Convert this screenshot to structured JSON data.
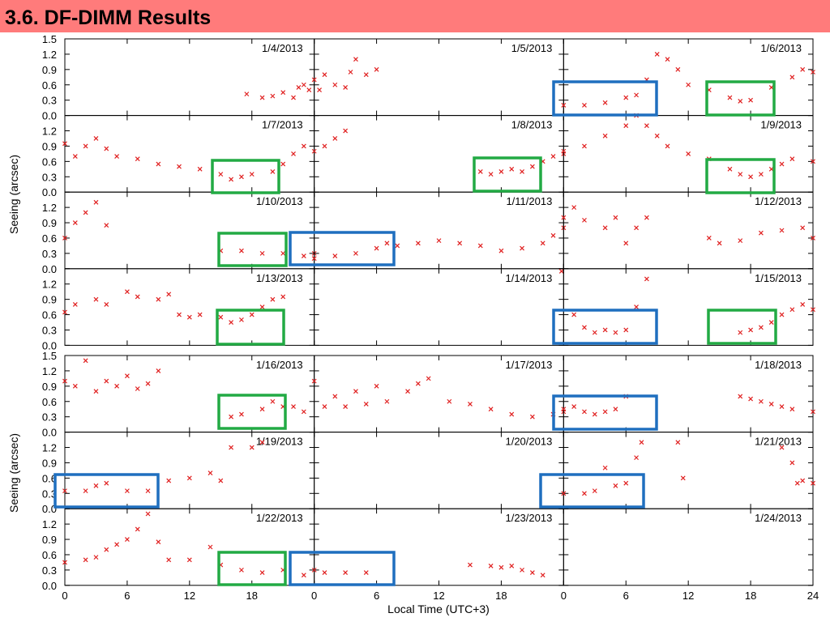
{
  "header": {
    "title": "3.6. DF-DIMM Results"
  },
  "chart_data": {
    "type": "scatter",
    "xlabel": "Local Time (UTC+3)",
    "ylabel": "Seeing (arcsec)",
    "xlim": [
      0,
      24
    ],
    "xticks": [
      0,
      6,
      12,
      18,
      24
    ],
    "ylim": [
      0,
      1.5
    ],
    "yticks": [
      {
        "value": 0,
        "label": "0.0"
      },
      0.3,
      0.6,
      0.9,
      1.2,
      1.5
    ],
    "series": [
      {
        "name": "1/4/2013",
        "color": "#e02020",
        "x": [
          17.5,
          19,
          20,
          21,
          22,
          22.5,
          23,
          23.5
        ],
        "values": [
          0.42,
          0.35,
          0.38,
          0.45,
          0.35,
          0.55,
          0.6,
          0.5
        ]
      },
      {
        "name": "1/5/2013",
        "color": "#e02020",
        "x": [
          0,
          0.5,
          1,
          2,
          3,
          3.5,
          4,
          5,
          6
        ],
        "values": [
          0.7,
          0.5,
          0.8,
          0.6,
          0.55,
          0.85,
          1.1,
          0.8,
          0.9
        ]
      },
      {
        "name": "1/6/2013",
        "color": "#e02020",
        "x": [
          0,
          2,
          4,
          6,
          7,
          8,
          9,
          10,
          11,
          12,
          14,
          16,
          17,
          18,
          20,
          22,
          23,
          24
        ],
        "values": [
          0.2,
          0.2,
          0.25,
          0.35,
          0.4,
          0.7,
          1.2,
          1.1,
          0.9,
          0.6,
          0.5,
          0.35,
          0.28,
          0.3,
          0.55,
          0.75,
          0.9,
          0.85
        ]
      },
      {
        "name": "1/7/2013",
        "color": "#e02020",
        "x": [
          0,
          1,
          2,
          3,
          4,
          5,
          7,
          9,
          11,
          13,
          15,
          16,
          17,
          18,
          20,
          21,
          22,
          23
        ],
        "values": [
          0.95,
          0.7,
          0.9,
          1.05,
          0.85,
          0.7,
          0.65,
          0.55,
          0.5,
          0.45,
          0.35,
          0.25,
          0.3,
          0.35,
          0.4,
          0.55,
          0.75,
          0.9
        ]
      },
      {
        "name": "1/8/2013",
        "color": "#e02020",
        "x": [
          0,
          1,
          2,
          3,
          16,
          17,
          18,
          19,
          20,
          21,
          22,
          23,
          24
        ],
        "values": [
          0.8,
          0.9,
          1.05,
          1.2,
          0.4,
          0.35,
          0.4,
          0.45,
          0.4,
          0.5,
          0.6,
          0.7,
          0.75
        ]
      },
      {
        "name": "1/9/2013",
        "color": "#e02020",
        "x": [
          0,
          2,
          4,
          6,
          7,
          8,
          9,
          10,
          12,
          14,
          16,
          17,
          18,
          19,
          20,
          21,
          22,
          24
        ],
        "values": [
          0.8,
          0.9,
          1.1,
          1.3,
          1.5,
          1.3,
          1.1,
          0.9,
          0.75,
          0.65,
          0.45,
          0.35,
          0.3,
          0.35,
          0.45,
          0.55,
          0.65,
          0.6
        ]
      },
      {
        "name": "1/10/2013",
        "color": "#e02020",
        "x": [
          0,
          1,
          2,
          3,
          4,
          15,
          17,
          19,
          21,
          23,
          24
        ],
        "values": [
          0.6,
          0.9,
          1.1,
          1.3,
          0.85,
          0.35,
          0.35,
          0.3,
          0.3,
          0.25,
          0.3
        ]
      },
      {
        "name": "1/11/2013",
        "color": "#e02020",
        "x": [
          0,
          2,
          4,
          6,
          7,
          8,
          10,
          12,
          14,
          16,
          18,
          20,
          22,
          23,
          24
        ],
        "values": [
          0.2,
          0.25,
          0.3,
          0.4,
          0.5,
          0.45,
          0.5,
          0.55,
          0.5,
          0.45,
          0.35,
          0.4,
          0.5,
          0.65,
          0.8
        ]
      },
      {
        "name": "1/12/2013",
        "color": "#e02020",
        "x": [
          0,
          1,
          2,
          4,
          5,
          6,
          7,
          8,
          14,
          15,
          17,
          19,
          21,
          23,
          24
        ],
        "values": [
          1.0,
          1.2,
          0.95,
          0.8,
          1.0,
          0.5,
          0.8,
          1.0,
          0.6,
          0.5,
          0.55,
          0.7,
          0.75,
          0.8,
          0.6
        ]
      },
      {
        "name": "1/13/2013",
        "color": "#e02020",
        "x": [
          0,
          1,
          3,
          4,
          6,
          7,
          9,
          10,
          11,
          12,
          13,
          15,
          16,
          17,
          18,
          19,
          20,
          21
        ],
        "values": [
          0.65,
          0.8,
          0.9,
          0.8,
          1.05,
          0.95,
          0.9,
          1.0,
          0.6,
          0.55,
          0.6,
          0.55,
          0.45,
          0.5,
          0.6,
          0.75,
          0.9,
          0.95
        ]
      },
      {
        "name": "1/14/2013",
        "color": "#e02020",
        "x": [
          23.8
        ],
        "values": [
          1.45
        ]
      },
      {
        "name": "1/15/2013",
        "color": "#e02020",
        "x": [
          1,
          2,
          3,
          4,
          5,
          6,
          7,
          8,
          17,
          18,
          19,
          20,
          21,
          22,
          23,
          24
        ],
        "values": [
          0.6,
          0.35,
          0.25,
          0.3,
          0.25,
          0.3,
          0.75,
          1.3,
          0.25,
          0.3,
          0.35,
          0.45,
          0.6,
          0.7,
          0.8,
          0.7
        ]
      },
      {
        "name": "1/16/2013",
        "color": "#e02020",
        "x": [
          0,
          1,
          2,
          3,
          4,
          5,
          6,
          7,
          8,
          9,
          16,
          17,
          19,
          20,
          21,
          22,
          23
        ],
        "values": [
          1.0,
          0.9,
          1.4,
          0.8,
          1.0,
          0.9,
          1.1,
          0.85,
          0.95,
          1.2,
          0.3,
          0.35,
          0.45,
          0.6,
          0.5,
          0.5,
          0.4
        ]
      },
      {
        "name": "1/17/2013",
        "color": "#e02020",
        "x": [
          0,
          1,
          2,
          3,
          4,
          5,
          6,
          7,
          9,
          10,
          11,
          13,
          15,
          17,
          19,
          21,
          23,
          24
        ],
        "values": [
          1.0,
          0.5,
          0.7,
          0.5,
          0.8,
          0.55,
          0.9,
          0.6,
          0.8,
          0.95,
          1.05,
          0.6,
          0.55,
          0.45,
          0.35,
          0.3,
          0.35,
          0.4
        ]
      },
      {
        "name": "1/18/2013",
        "color": "#e02020",
        "x": [
          0,
          1,
          2,
          3,
          4,
          5,
          6,
          17,
          18,
          19,
          20,
          21,
          22,
          24
        ],
        "values": [
          0.45,
          0.5,
          0.4,
          0.35,
          0.4,
          0.45,
          0.7,
          0.7,
          0.65,
          0.6,
          0.55,
          0.5,
          0.45,
          0.4
        ]
      },
      {
        "name": "1/19/2013",
        "color": "#e02020",
        "x": [
          0,
          2,
          3,
          4,
          6,
          8,
          10,
          12,
          14,
          15,
          16,
          18,
          19
        ],
        "values": [
          0.35,
          0.35,
          0.45,
          0.5,
          0.35,
          0.35,
          0.55,
          0.6,
          0.7,
          0.55,
          1.2,
          1.2,
          1.3
        ]
      },
      {
        "name": "1/20/2013",
        "color": "#e02020",
        "x": [],
        "values": []
      },
      {
        "name": "1/21/2013",
        "color": "#e02020",
        "x": [
          0,
          2,
          3,
          4,
          5,
          6,
          7,
          7.5,
          11,
          11.5,
          21,
          22,
          22.5,
          23,
          24
        ],
        "values": [
          0.3,
          0.3,
          0.35,
          0.8,
          0.45,
          0.5,
          1.0,
          1.3,
          1.3,
          0.6,
          1.2,
          0.9,
          0.5,
          0.55,
          0.5
        ]
      },
      {
        "name": "1/22/2013",
        "color": "#e02020",
        "x": [
          0,
          2,
          3,
          4,
          5,
          6,
          7,
          8,
          9,
          10,
          12,
          14,
          15,
          17,
          19,
          21,
          23
        ],
        "values": [
          0.45,
          0.5,
          0.55,
          0.7,
          0.8,
          0.9,
          1.1,
          1.4,
          0.85,
          0.5,
          0.5,
          0.75,
          0.4,
          0.3,
          0.25,
          0.3,
          0.2
        ]
      },
      {
        "name": "1/23/2013",
        "color": "#e02020",
        "x": [
          0,
          1,
          3,
          5,
          15,
          17,
          18,
          19,
          20,
          21,
          22
        ],
        "values": [
          0.3,
          0.25,
          0.25,
          0.25,
          0.4,
          0.38,
          0.35,
          0.38,
          0.3,
          0.25,
          0.2
        ]
      },
      {
        "name": "1/24/2013",
        "color": "#e02020",
        "x": [],
        "values": []
      }
    ]
  }
}
